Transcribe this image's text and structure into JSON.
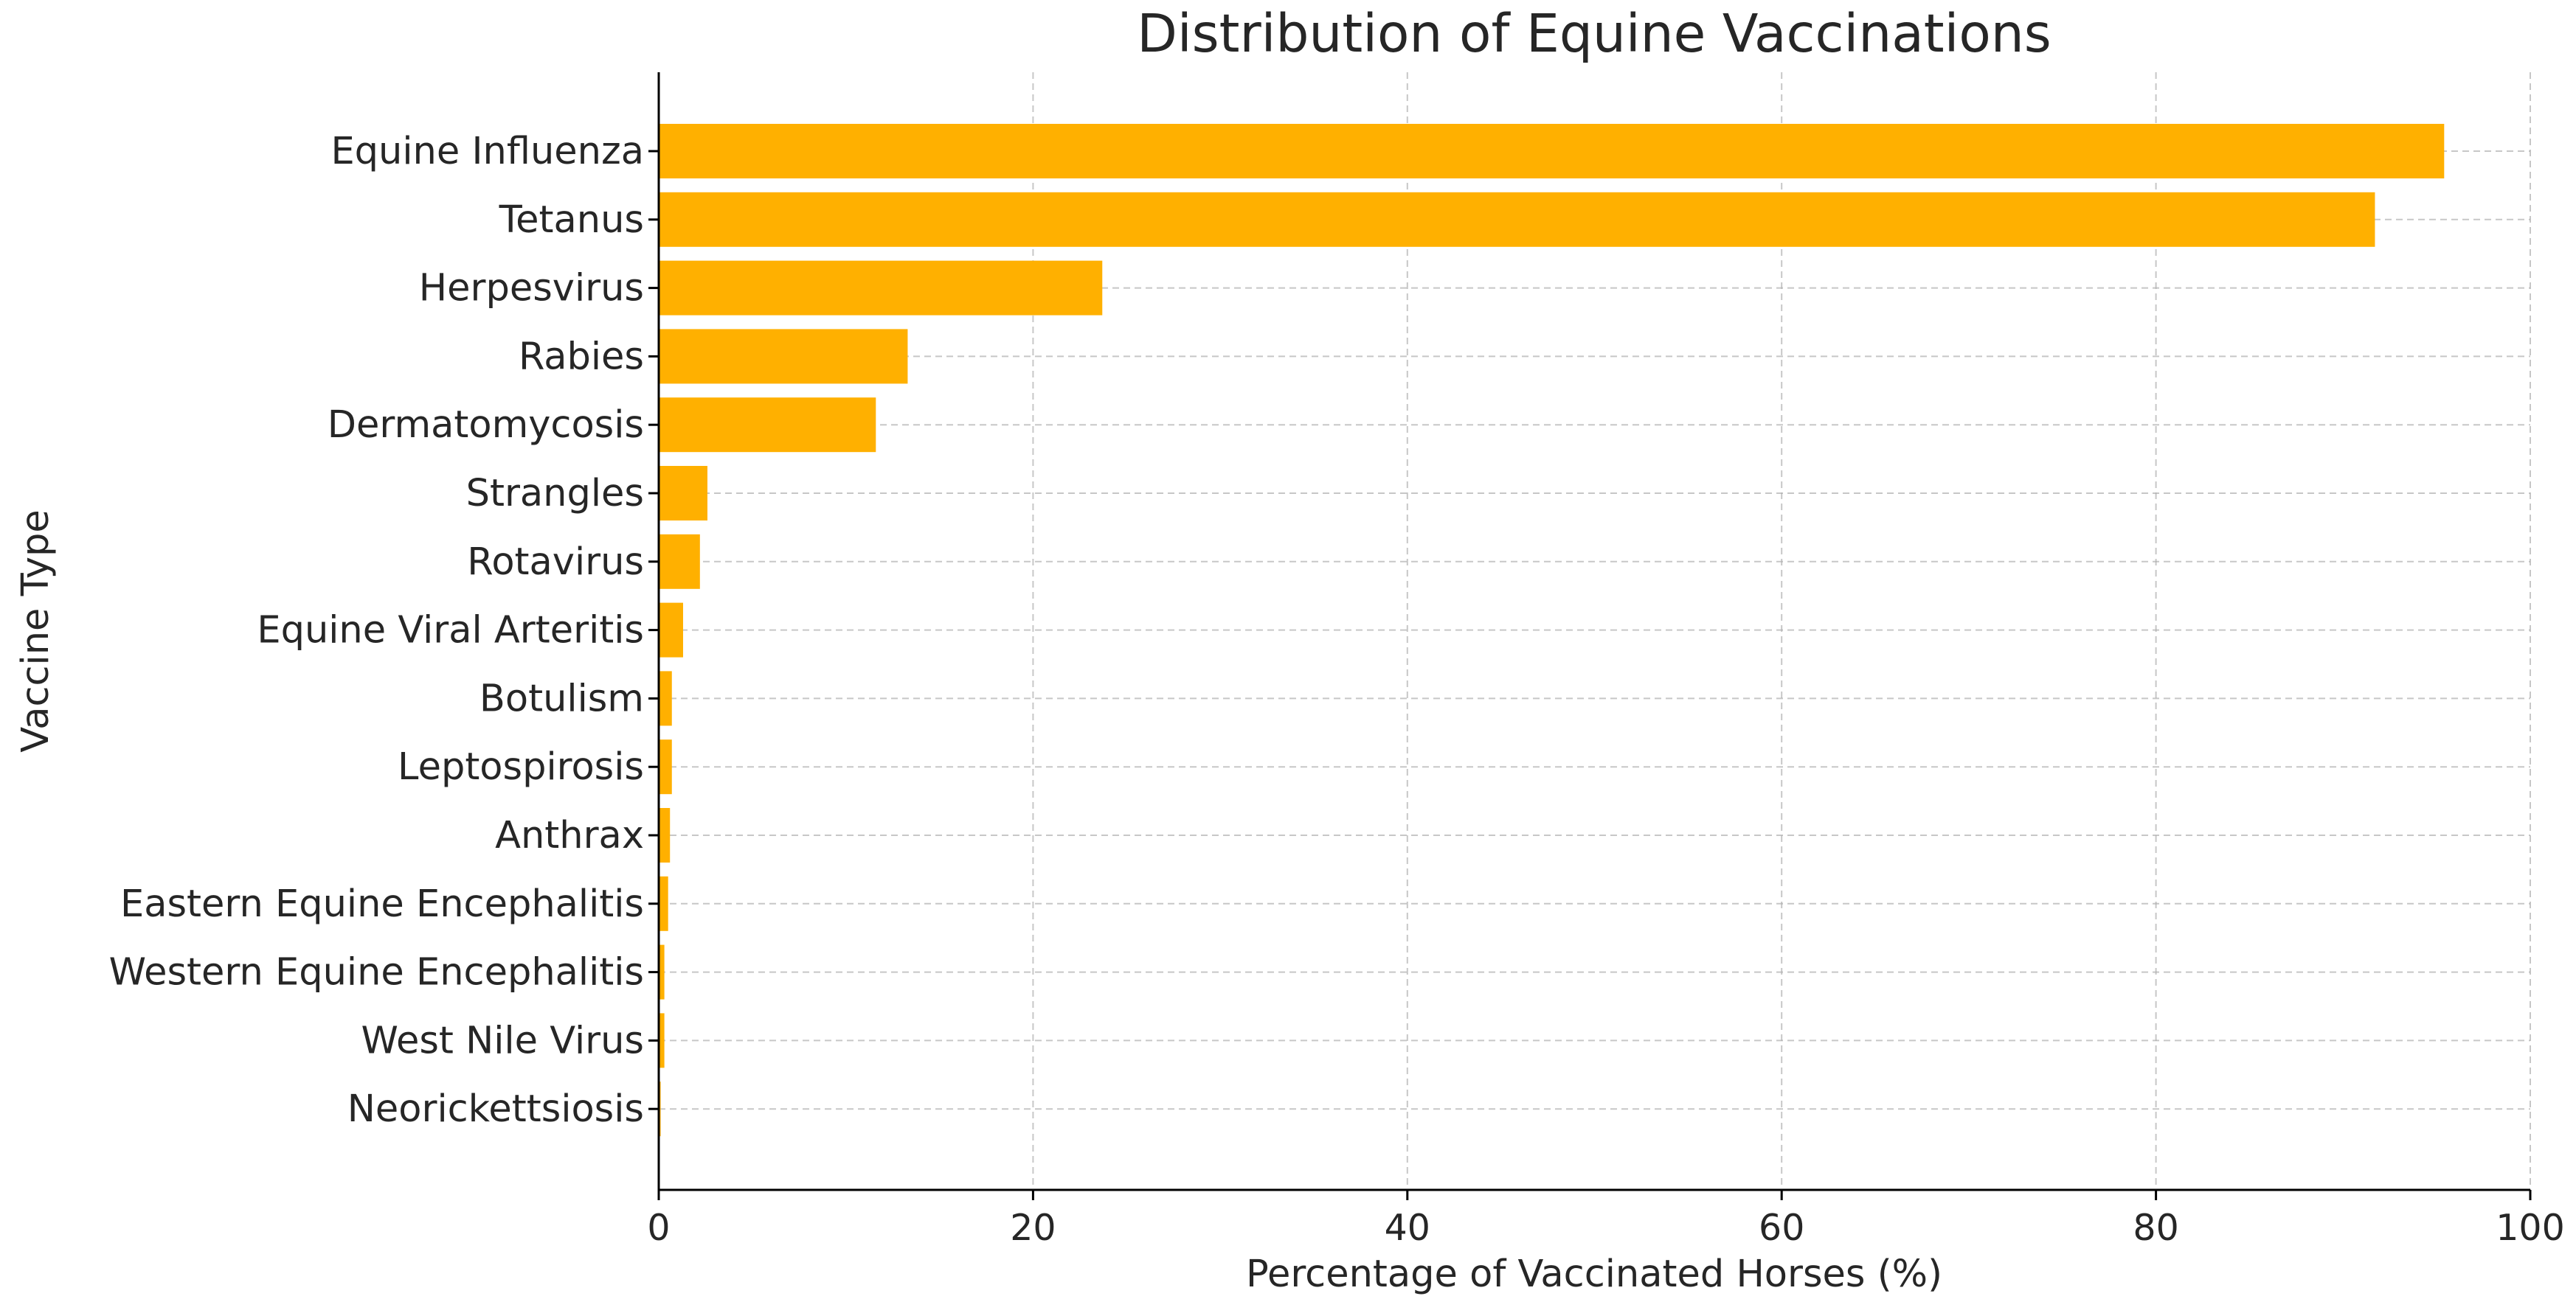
{
  "chart_data": {
    "type": "bar",
    "orientation": "horizontal",
    "title": "Distribution of Equine Vaccinations",
    "xlabel": "Percentage of Vaccinated Horses (%)",
    "ylabel": "Vaccine Type",
    "xlim": [
      0,
      100
    ],
    "xticks": [
      0,
      20,
      40,
      60,
      80,
      100
    ],
    "grid": true,
    "bar_color": "#FFB000",
    "categories": [
      "Equine Influenza",
      "Tetanus",
      "Herpesvirus",
      "Rabies",
      "Dermatomycosis",
      "Strangles",
      "Rotavirus",
      "Equine Viral Arteritis",
      "Botulism",
      "Leptospirosis",
      "Anthrax",
      "Eastern Equine Encephalitis",
      "Western Equine Encephalitis",
      "West Nile Virus",
      "Neorickettsiosis"
    ],
    "values": [
      95.4,
      91.7,
      23.7,
      13.3,
      11.6,
      2.6,
      2.2,
      1.3,
      0.7,
      0.7,
      0.6,
      0.5,
      0.3,
      0.3,
      0.1
    ]
  }
}
